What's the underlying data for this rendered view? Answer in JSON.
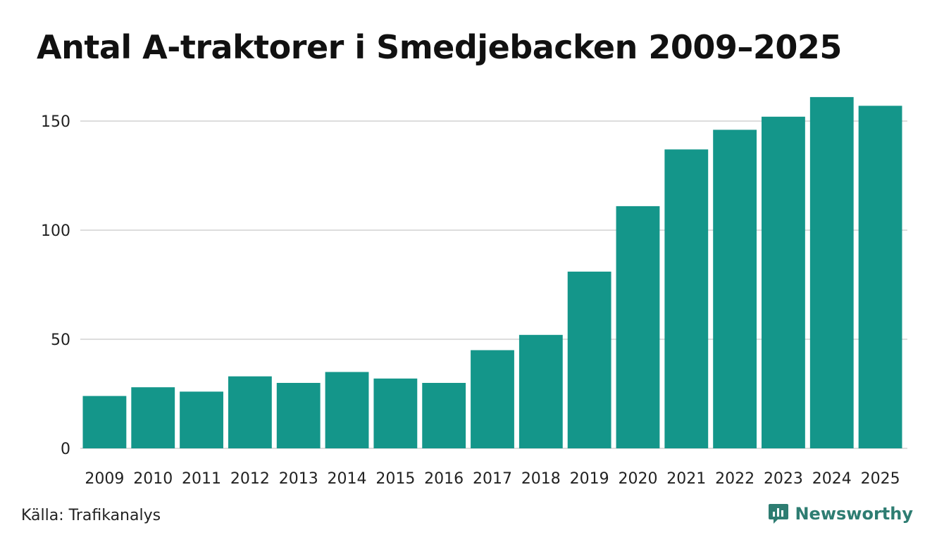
{
  "chart_data": {
    "type": "bar",
    "title": "Antal A-traktorer i Smedjebacken 2009–2025",
    "categories": [
      "2009",
      "2010",
      "2011",
      "2012",
      "2013",
      "2014",
      "2015",
      "2016",
      "2017",
      "2018",
      "2019",
      "2020",
      "2021",
      "2022",
      "2023",
      "2024",
      "2025"
    ],
    "values": [
      24,
      28,
      26,
      33,
      30,
      35,
      32,
      30,
      45,
      52,
      81,
      111,
      137,
      146,
      152,
      161,
      157
    ],
    "ylim": [
      0,
      165
    ],
    "yticks": [
      0,
      50,
      100,
      150
    ],
    "xlabel": "",
    "ylabel": "",
    "grid": true,
    "bar_color": "#14968a",
    "grid_color": "#dddddd"
  },
  "footer": {
    "source": "Källa: Trafikanalys",
    "brand": "Newsworthy",
    "brand_color": "#2e7d72"
  }
}
